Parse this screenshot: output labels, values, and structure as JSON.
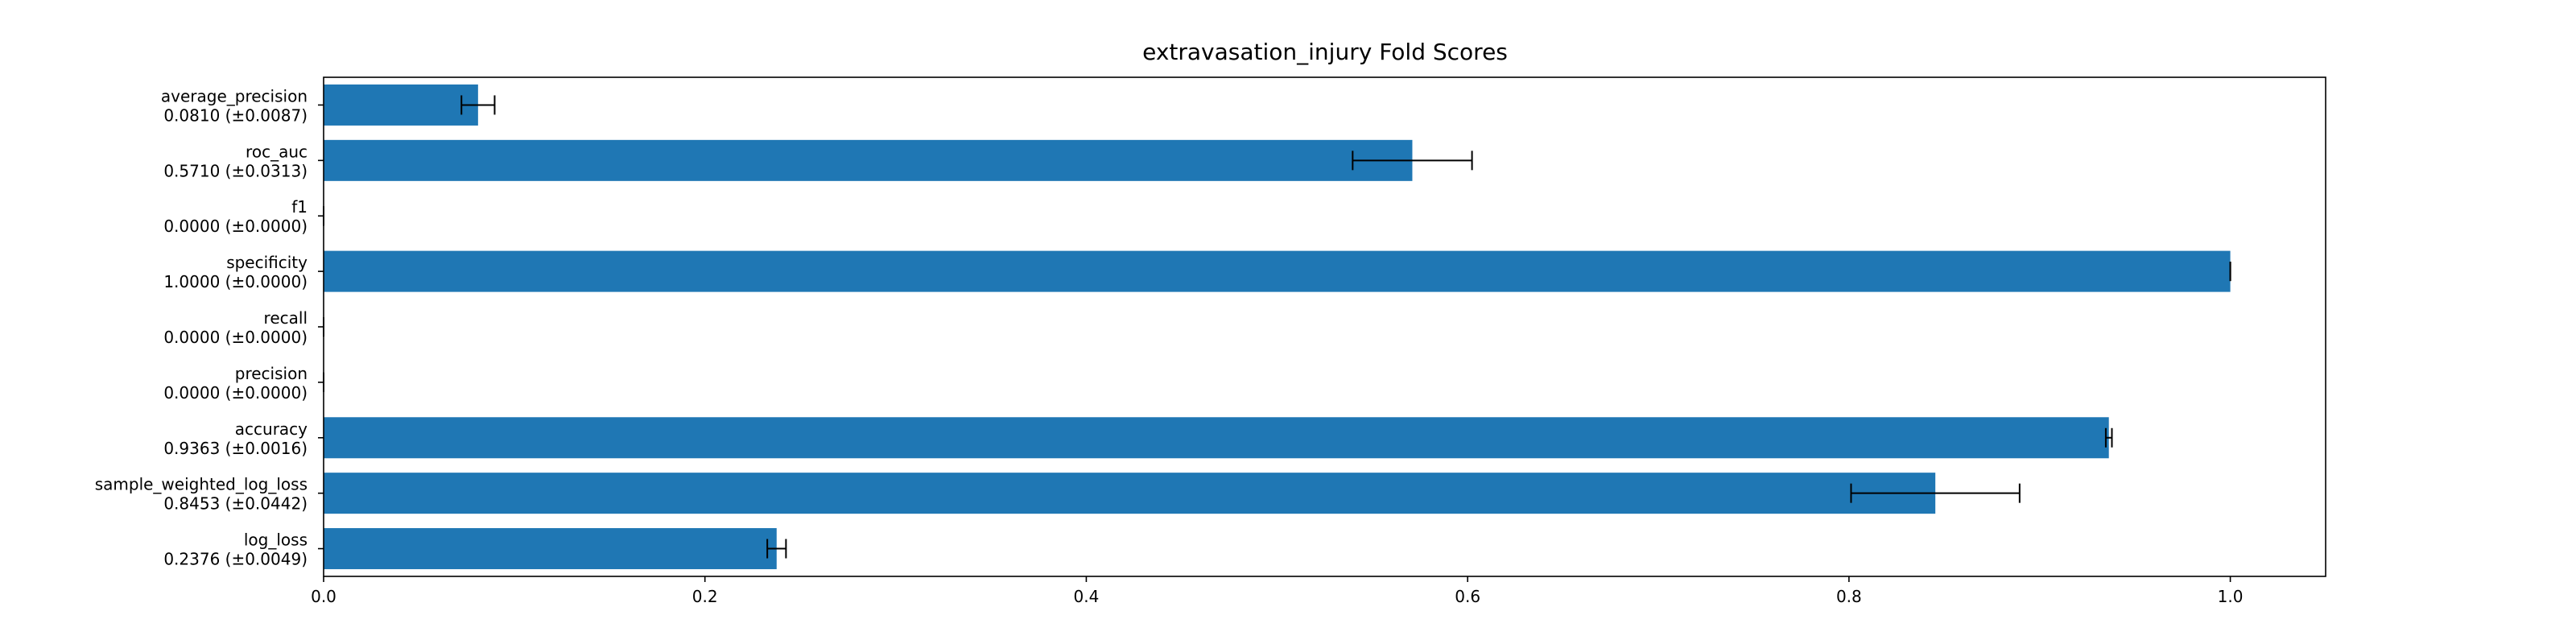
{
  "chart_data": {
    "type": "bar",
    "orientation": "horizontal",
    "title": "extravasation_injury Fold Scores",
    "xlabel": "",
    "ylabel": "",
    "xlim": [
      0,
      1.05
    ],
    "x_ticks": [
      0.0,
      0.2,
      0.4,
      0.6,
      0.8,
      1.0
    ],
    "x_tick_labels": [
      "0.0",
      "0.2",
      "0.4",
      "0.6",
      "0.8",
      "1.0"
    ],
    "grid": false,
    "bar_color": "#1f77b4",
    "error_color": "#000000",
    "bars": [
      {
        "name": "average_precision",
        "value": 0.081,
        "error": 0.0087,
        "label": "0.0810 (±0.0087)"
      },
      {
        "name": "roc_auc",
        "value": 0.571,
        "error": 0.0313,
        "label": "0.5710 (±0.0313)"
      },
      {
        "name": "f1",
        "value": 0.0,
        "error": 0.0,
        "label": "0.0000 (±0.0000)"
      },
      {
        "name": "specificity",
        "value": 1.0,
        "error": 0.0,
        "label": "1.0000 (±0.0000)"
      },
      {
        "name": "recall",
        "value": 0.0,
        "error": 0.0,
        "label": "0.0000 (±0.0000)"
      },
      {
        "name": "precision",
        "value": 0.0,
        "error": 0.0,
        "label": "0.0000 (±0.0000)"
      },
      {
        "name": "accuracy",
        "value": 0.9363,
        "error": 0.0016,
        "label": "0.9363 (±0.0016)"
      },
      {
        "name": "sample_weighted_log_loss",
        "value": 0.8453,
        "error": 0.0442,
        "label": "0.8453 (±0.0442)"
      },
      {
        "name": "log_loss",
        "value": 0.2376,
        "error": 0.0049,
        "label": "0.2376 (±0.0049)"
      }
    ]
  }
}
